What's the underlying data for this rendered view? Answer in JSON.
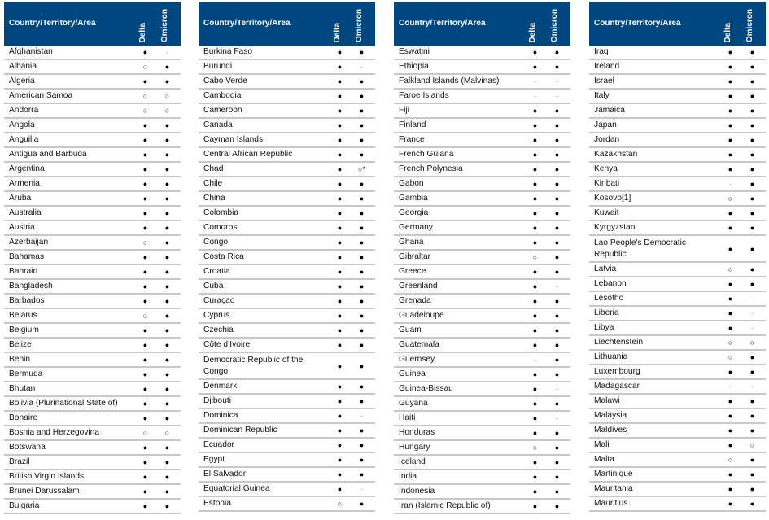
{
  "header": {
    "country": "Country/Territory/Area",
    "delta": "Delta",
    "omicron": "Omicron"
  },
  "symbols": {
    "f": "●",
    "o": "○",
    "-": "-",
    "o*": "○*"
  },
  "colors": {
    "header_bg": "#00467f",
    "header_text": "#ffffff",
    "row_border": "#c8c8c8"
  },
  "tables": [
    {
      "rows": [
        {
          "name": "Afghanistan",
          "delta": "f",
          "omicron": "-"
        },
        {
          "name": "Albania",
          "delta": "o",
          "omicron": "f"
        },
        {
          "name": "Algeria",
          "delta": "f",
          "omicron": "f"
        },
        {
          "name": "American Samoa",
          "delta": "o",
          "omicron": "o"
        },
        {
          "name": "Andorra",
          "delta": "o",
          "omicron": "o"
        },
        {
          "name": "Angola",
          "delta": "f",
          "omicron": "f"
        },
        {
          "name": "Anguilla",
          "delta": "f",
          "omicron": "f"
        },
        {
          "name": "Antigua and Barbuda",
          "delta": "f",
          "omicron": "f"
        },
        {
          "name": "Argentina",
          "delta": "f",
          "omicron": "f"
        },
        {
          "name": "Armenia",
          "delta": "f",
          "omicron": "f"
        },
        {
          "name": "Aruba",
          "delta": "f",
          "omicron": "f"
        },
        {
          "name": "Australia",
          "delta": "f",
          "omicron": "f"
        },
        {
          "name": "Austria",
          "delta": "f",
          "omicron": "f"
        },
        {
          "name": "Azerbaijan",
          "delta": "o",
          "omicron": "f"
        },
        {
          "name": "Bahamas",
          "delta": "f",
          "omicron": "f"
        },
        {
          "name": "Bahrain",
          "delta": "f",
          "omicron": "f"
        },
        {
          "name": "Bangladesh",
          "delta": "f",
          "omicron": "f"
        },
        {
          "name": "Barbados",
          "delta": "f",
          "omicron": "f"
        },
        {
          "name": "Belarus",
          "delta": "o",
          "omicron": "f"
        },
        {
          "name": "Belgium",
          "delta": "f",
          "omicron": "f"
        },
        {
          "name": "Belize",
          "delta": "f",
          "omicron": "f"
        },
        {
          "name": "Benin",
          "delta": "f",
          "omicron": "f"
        },
        {
          "name": "Bermuda",
          "delta": "f",
          "omicron": "f"
        },
        {
          "name": "Bhutan",
          "delta": "f",
          "omicron": "f"
        },
        {
          "name": "Bolivia (Plurinational State of)",
          "delta": "f",
          "omicron": "f"
        },
        {
          "name": "Bonaire",
          "delta": "f",
          "omicron": "f"
        },
        {
          "name": "Bosnia and Herzegovina",
          "delta": "o",
          "omicron": "o"
        },
        {
          "name": "Botswana",
          "delta": "f",
          "omicron": "f"
        },
        {
          "name": "Brazil",
          "delta": "f",
          "omicron": "f"
        },
        {
          "name": "British Virgin Islands",
          "delta": "f",
          "omicron": "f"
        },
        {
          "name": "Brunei Darussalam",
          "delta": "f",
          "omicron": "f"
        },
        {
          "name": "Bulgaria",
          "delta": "f",
          "omicron": "f"
        }
      ]
    },
    {
      "rows": [
        {
          "name": "Burkina Faso",
          "delta": "f",
          "omicron": "f"
        },
        {
          "name": "Burundi",
          "delta": "f",
          "omicron": "-"
        },
        {
          "name": "Cabo Verde",
          "delta": "f",
          "omicron": "f"
        },
        {
          "name": "Cambodia",
          "delta": "f",
          "omicron": "f"
        },
        {
          "name": "Cameroon",
          "delta": "f",
          "omicron": "f"
        },
        {
          "name": "Canada",
          "delta": "f",
          "omicron": "f"
        },
        {
          "name": "Cayman Islands",
          "delta": "f",
          "omicron": "f"
        },
        {
          "name": "Central African Republic",
          "delta": "f",
          "omicron": "f"
        },
        {
          "name": "Chad",
          "delta": "f",
          "omicron": "o*"
        },
        {
          "name": "Chile",
          "delta": "f",
          "omicron": "f"
        },
        {
          "name": "China",
          "delta": "f",
          "omicron": "f"
        },
        {
          "name": "Colombia",
          "delta": "f",
          "omicron": "f"
        },
        {
          "name": "Comoros",
          "delta": "f",
          "omicron": "f"
        },
        {
          "name": "Congo",
          "delta": "f",
          "omicron": "f"
        },
        {
          "name": "Costa Rica",
          "delta": "f",
          "omicron": "f"
        },
        {
          "name": "Croatia",
          "delta": "f",
          "omicron": "f"
        },
        {
          "name": "Cuba",
          "delta": "f",
          "omicron": "f"
        },
        {
          "name": "Curaçao",
          "delta": "f",
          "omicron": "f"
        },
        {
          "name": "Cyprus",
          "delta": "f",
          "omicron": "f"
        },
        {
          "name": "Czechia",
          "delta": "f",
          "omicron": "f"
        },
        {
          "name": "Côte d’Ivoire",
          "delta": "f",
          "omicron": "f"
        },
        {
          "name": "Democratic Republic of the Congo",
          "delta": "f",
          "omicron": "f",
          "wrap": true
        },
        {
          "name": "Denmark",
          "delta": "f",
          "omicron": "f"
        },
        {
          "name": "Djibouti",
          "delta": "f",
          "omicron": "f"
        },
        {
          "name": "Dominica",
          "delta": "f",
          "omicron": "-"
        },
        {
          "name": "Dominican Republic",
          "delta": "f",
          "omicron": "f"
        },
        {
          "name": "Ecuador",
          "delta": "f",
          "omicron": "f"
        },
        {
          "name": "Egypt",
          "delta": "f",
          "omicron": "f"
        },
        {
          "name": "El Salvador",
          "delta": "f",
          "omicron": "f"
        },
        {
          "name": "Equatorial Guinea",
          "delta": "f",
          "omicron": "-"
        },
        {
          "name": "Estonia",
          "delta": "o",
          "omicron": "f"
        }
      ]
    },
    {
      "rows": [
        {
          "name": "Eswatini",
          "delta": "f",
          "omicron": "f"
        },
        {
          "name": "Ethiopia",
          "delta": "f",
          "omicron": "f"
        },
        {
          "name": "Falkland Islands (Malvinas)",
          "delta": "-",
          "omicron": "-"
        },
        {
          "name": "Faroe Islands",
          "delta": "-",
          "omicron": "-"
        },
        {
          "name": "Fiji",
          "delta": "f",
          "omicron": "f"
        },
        {
          "name": "Finland",
          "delta": "f",
          "omicron": "f"
        },
        {
          "name": "France",
          "delta": "f",
          "omicron": "f"
        },
        {
          "name": "French Guiana",
          "delta": "f",
          "omicron": "f"
        },
        {
          "name": "French Polynesia",
          "delta": "f",
          "omicron": "f"
        },
        {
          "name": "Gabon",
          "delta": "f",
          "omicron": "f"
        },
        {
          "name": "Gambia",
          "delta": "f",
          "omicron": "f"
        },
        {
          "name": "Georgia",
          "delta": "f",
          "omicron": "f"
        },
        {
          "name": "Germany",
          "delta": "f",
          "omicron": "f"
        },
        {
          "name": "Ghana",
          "delta": "f",
          "omicron": "f"
        },
        {
          "name": "Gibraltar",
          "delta": "o",
          "omicron": "f"
        },
        {
          "name": "Greece",
          "delta": "f",
          "omicron": "f"
        },
        {
          "name": "Greenland",
          "delta": "f",
          "omicron": "-"
        },
        {
          "name": "Grenada",
          "delta": "f",
          "omicron": "f"
        },
        {
          "name": "Guadeloupe",
          "delta": "f",
          "omicron": "f"
        },
        {
          "name": "Guam",
          "delta": "f",
          "omicron": "f"
        },
        {
          "name": "Guatemala",
          "delta": "f",
          "omicron": "f"
        },
        {
          "name": "Guernsey",
          "delta": "-",
          "omicron": "f"
        },
        {
          "name": "Guinea",
          "delta": "f",
          "omicron": "f"
        },
        {
          "name": "Guinea-Bissau",
          "delta": "f",
          "omicron": "-"
        },
        {
          "name": "Guyana",
          "delta": "f",
          "omicron": "f"
        },
        {
          "name": "Haiti",
          "delta": "f",
          "omicron": "-"
        },
        {
          "name": "Honduras",
          "delta": "f",
          "omicron": "f"
        },
        {
          "name": "Hungary",
          "delta": "o",
          "omicron": "f"
        },
        {
          "name": "Iceland",
          "delta": "f",
          "omicron": "f"
        },
        {
          "name": "India",
          "delta": "f",
          "omicron": "f"
        },
        {
          "name": "Indonesia",
          "delta": "f",
          "omicron": "f"
        },
        {
          "name": "Iran (Islamic Republic of)",
          "delta": "f",
          "omicron": "f"
        }
      ]
    },
    {
      "rows": [
        {
          "name": "Iraq",
          "delta": "f",
          "omicron": "f"
        },
        {
          "name": "Ireland",
          "delta": "f",
          "omicron": "f"
        },
        {
          "name": "Israel",
          "delta": "f",
          "omicron": "f"
        },
        {
          "name": "Italy",
          "delta": "f",
          "omicron": "f"
        },
        {
          "name": "Jamaica",
          "delta": "f",
          "omicron": "f"
        },
        {
          "name": "Japan",
          "delta": "f",
          "omicron": "f"
        },
        {
          "name": "Jordan",
          "delta": "f",
          "omicron": "f"
        },
        {
          "name": "Kazakhstan",
          "delta": "f",
          "omicron": "f"
        },
        {
          "name": "Kenya",
          "delta": "f",
          "omicron": "f"
        },
        {
          "name": "Kiribati",
          "delta": "-",
          "omicron": "f"
        },
        {
          "name": "Kosovo[1]",
          "delta": "o",
          "omicron": "f"
        },
        {
          "name": "Kuwait",
          "delta": "f",
          "omicron": "f"
        },
        {
          "name": "Kyrgyzstan",
          "delta": "f",
          "omicron": "f"
        },
        {
          "name": "Lao People's Democratic Republic",
          "delta": "f",
          "omicron": "f",
          "wrap": true
        },
        {
          "name": "Latvia",
          "delta": "o",
          "omicron": "f"
        },
        {
          "name": "Lebanon",
          "delta": "f",
          "omicron": "f"
        },
        {
          "name": "Lesotho",
          "delta": "f",
          "omicron": "-"
        },
        {
          "name": "Liberia",
          "delta": "f",
          "omicron": "-"
        },
        {
          "name": "Libya",
          "delta": "f",
          "omicron": "-"
        },
        {
          "name": "Liechtenstein",
          "delta": "o",
          "omicron": "o"
        },
        {
          "name": "Lithuania",
          "delta": "o",
          "omicron": "f"
        },
        {
          "name": "Luxembourg",
          "delta": "f",
          "omicron": "f"
        },
        {
          "name": "Madagascar",
          "delta": "-",
          "omicron": "-"
        },
        {
          "name": "Malawi",
          "delta": "f",
          "omicron": "f"
        },
        {
          "name": "Malaysia",
          "delta": "f",
          "omicron": "f"
        },
        {
          "name": "Maldives",
          "delta": "f",
          "omicron": "f"
        },
        {
          "name": "Mali",
          "delta": "f",
          "omicron": "o"
        },
        {
          "name": "Malta",
          "delta": "o",
          "omicron": "f"
        },
        {
          "name": "Martinique",
          "delta": "f",
          "omicron": "f"
        },
        {
          "name": "Mauritania",
          "delta": "f",
          "omicron": "f"
        },
        {
          "name": "Mauritius",
          "delta": "f",
          "omicron": "f"
        }
      ]
    }
  ]
}
